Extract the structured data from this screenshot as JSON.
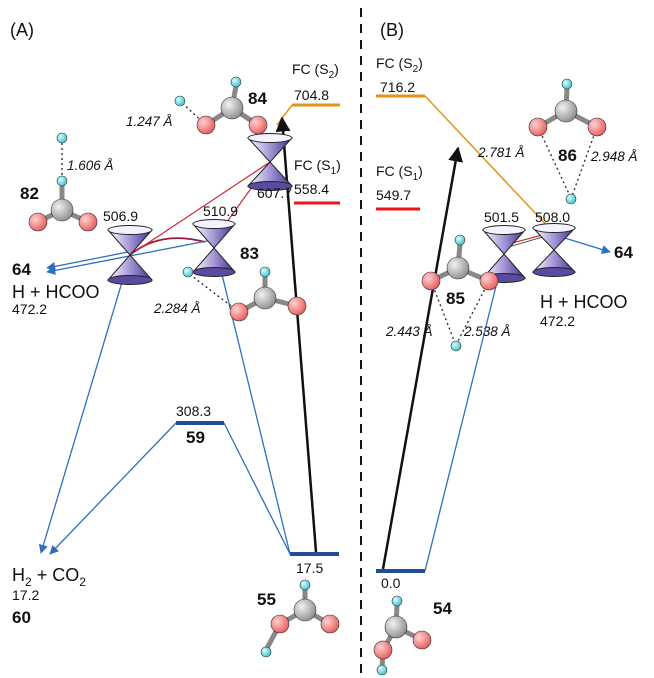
{
  "colors": {
    "ground_level": "#1f4e96",
    "fc_s1": "#e8141b",
    "fc_s2": "#e59318",
    "blue_path": "#2f6fbe",
    "red_path": "#d02233",
    "dark_red_path": "#a0153a",
    "orange_path": "#e59318",
    "oxygen": "#f07575",
    "carbon": "#a9a9a9",
    "hydrogen": "#5fcfd8",
    "cone": "#7a68b8"
  },
  "panels": {
    "A": {
      "tag": "(A)",
      "fc_s2": {
        "prefix": "FC (S",
        "sub": "2",
        "suffix": ")",
        "energy": "704.8"
      },
      "fc_s1": {
        "prefix": "FC (S",
        "sub": "1",
        "suffix": ")",
        "energy": "558.4"
      },
      "ci_82": {
        "energy": "506.9",
        "id": "82",
        "distance": "1.606 Å"
      },
      "ci_83": {
        "energy": "510.9",
        "id": "83",
        "distance": "2.284 Å"
      },
      "ci_84": {
        "energy": "607.7",
        "id": "84",
        "distance": "1.247 Å"
      },
      "prod_64": {
        "id": "64",
        "name": "H + HCOO",
        "energy": "472.2"
      },
      "min_59": {
        "energy": "308.3",
        "id": "59"
      },
      "min_55": {
        "energy": "17.5",
        "id": "55"
      },
      "prod_60": {
        "name_prefix": "H",
        "name_sub": "2",
        "name_suffix": " + CO",
        "name_sub2": "2",
        "energy": "17.2",
        "id": "60"
      }
    },
    "B": {
      "tag": "(B)",
      "fc_s2": {
        "prefix": "FC (S",
        "sub": "2",
        "suffix": ")",
        "energy": "716.2"
      },
      "fc_s1": {
        "prefix": "FC (S",
        "sub": "1",
        "suffix": ")",
        "energy": "549.7"
      },
      "ci_85": {
        "energy": "501.5",
        "id": "85",
        "distance_a": "2.443 Å",
        "distance_b": "2.538 Å"
      },
      "ci_86": {
        "energy": "508.0",
        "id": "86",
        "distance_a": "2.781 Å",
        "distance_b": "2.948 Å"
      },
      "prod_64": {
        "id": "64",
        "name": "H + HCOO",
        "energy": "472.2"
      },
      "min_54": {
        "energy": "0.0",
        "id": "54"
      }
    }
  }
}
